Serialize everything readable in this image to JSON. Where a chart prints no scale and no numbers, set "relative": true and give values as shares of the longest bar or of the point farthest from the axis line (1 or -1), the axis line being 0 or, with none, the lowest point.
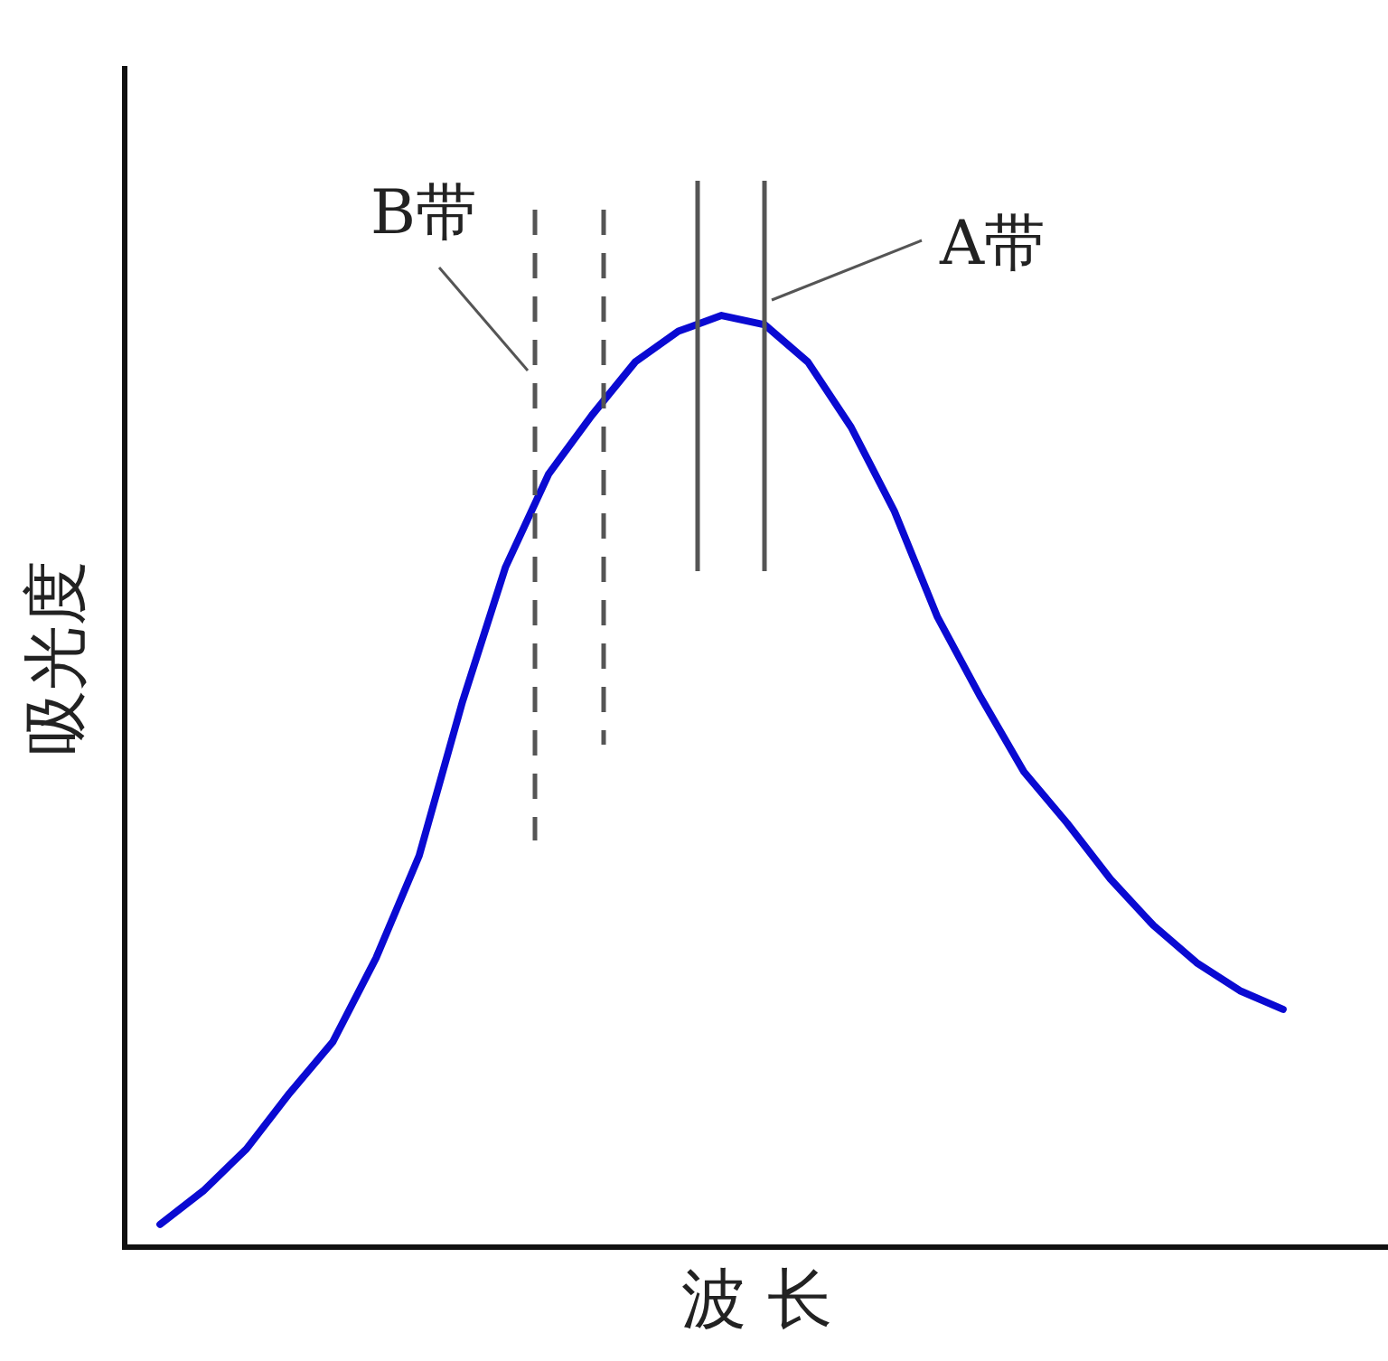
{
  "chart_data": {
    "type": "line",
    "xlabel": "波 长",
    "ylabel": "吸光度",
    "relative": true,
    "grid": false,
    "legend": false,
    "marker": "none",
    "line_style": "solid",
    "categories": [
      null,
      null,
      null,
      null,
      null,
      null,
      null,
      null,
      null,
      null,
      null,
      null,
      null,
      null,
      null,
      null,
      null,
      null,
      null,
      null,
      null,
      null,
      null,
      null,
      null,
      null,
      null
    ],
    "series": [
      {
        "color": "#0a0ad2",
        "values": [
          0.024,
          0.06,
          0.105,
          0.165,
          0.22,
          0.31,
          0.42,
          0.585,
          0.73,
          0.83,
          0.893,
          0.95,
          0.983,
          1,
          0.99,
          0.95,
          0.88,
          0.79,
          0.676,
          0.59,
          0.51,
          0.455,
          0.395,
          0.345,
          0.305,
          0.275,
          0.255
        ]
      }
    ],
    "annotations": [
      "B带",
      "A带"
    ]
  }
}
